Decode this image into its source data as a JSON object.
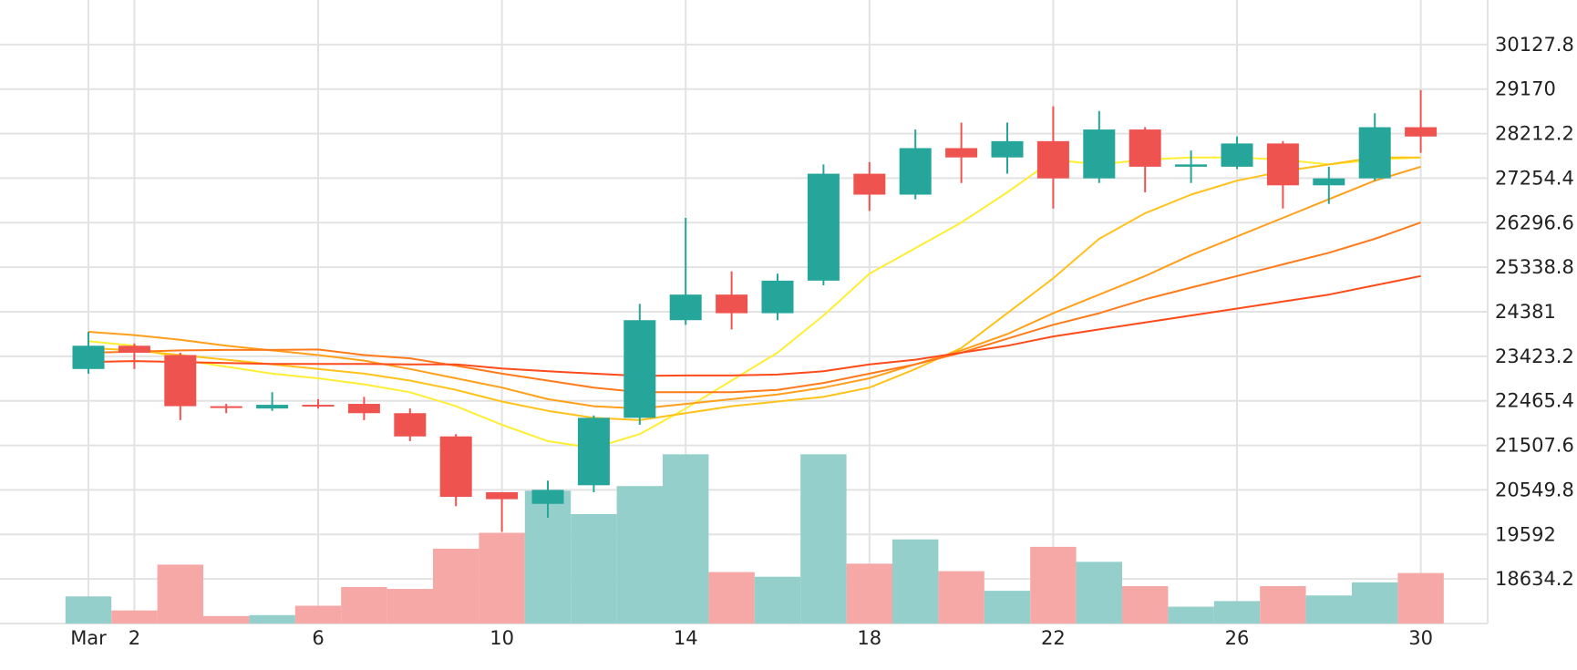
{
  "chart_data": {
    "type": "candlestick",
    "x_axis": {
      "tick_labels": [
        "Mar",
        "2",
        "6",
        "10",
        "14",
        "18",
        "22",
        "26",
        "30"
      ],
      "tick_days": [
        1,
        2,
        6,
        10,
        14,
        18,
        22,
        26,
        30
      ]
    },
    "y_axis": {
      "position": "right",
      "tick_labels": [
        "30127.8",
        "29170",
        "28212.2",
        "27254.4",
        "26296.6",
        "25338.8",
        "24381",
        "23423.2",
        "22465.4",
        "21507.6",
        "20549.8",
        "19592",
        "18634.2"
      ],
      "ylim": [
        17676.4,
        31085.6
      ]
    },
    "grid": true,
    "colors": {
      "up": "#26a69a",
      "down": "#ef5350",
      "up_volume": "#94cfcc",
      "down_volume": "#f5a8a6",
      "grid": "#e3e3e3"
    },
    "candles": [
      {
        "day": 1,
        "open": 23150,
        "high": 23950,
        "low": 23050,
        "close": 23650
      },
      {
        "day": 2,
        "open": 23650,
        "high": 23700,
        "low": 23150,
        "close": 23500
      },
      {
        "day": 3,
        "open": 23450,
        "high": 23500,
        "low": 22050,
        "close": 22350
      },
      {
        "day": 4,
        "open": 22350,
        "high": 22400,
        "low": 22200,
        "close": 22320
      },
      {
        "day": 5,
        "open": 22300,
        "high": 22650,
        "low": 22250,
        "close": 22380
      },
      {
        "day": 6,
        "open": 22380,
        "high": 22500,
        "low": 22300,
        "close": 22360
      },
      {
        "day": 7,
        "open": 22400,
        "high": 22550,
        "low": 22050,
        "close": 22200
      },
      {
        "day": 8,
        "open": 22200,
        "high": 22300,
        "low": 21600,
        "close": 21700
      },
      {
        "day": 9,
        "open": 21700,
        "high": 21750,
        "low": 20200,
        "close": 20400
      },
      {
        "day": 10,
        "open": 20500,
        "high": 20500,
        "low": 19650,
        "close": 20350
      },
      {
        "day": 11,
        "open": 20250,
        "high": 20750,
        "low": 19950,
        "close": 20550
      },
      {
        "day": 12,
        "open": 20650,
        "high": 22150,
        "low": 20500,
        "close": 22100
      },
      {
        "day": 13,
        "open": 22100,
        "high": 24550,
        "low": 21950,
        "close": 24200
      },
      {
        "day": 14,
        "open": 24200,
        "high": 26400,
        "low": 24100,
        "close": 24750
      },
      {
        "day": 15,
        "open": 24750,
        "high": 25250,
        "low": 24000,
        "close": 24350
      },
      {
        "day": 16,
        "open": 24350,
        "high": 25200,
        "low": 24200,
        "close": 25050
      },
      {
        "day": 17,
        "open": 25050,
        "high": 27550,
        "low": 24950,
        "close": 27350
      },
      {
        "day": 18,
        "open": 27350,
        "high": 27600,
        "low": 26550,
        "close": 26900
      },
      {
        "day": 19,
        "open": 26900,
        "high": 28300,
        "low": 26800,
        "close": 27900
      },
      {
        "day": 20,
        "open": 27900,
        "high": 28450,
        "low": 27150,
        "close": 27700
      },
      {
        "day": 21,
        "open": 27700,
        "high": 28450,
        "low": 27350,
        "close": 28050
      },
      {
        "day": 22,
        "open": 28050,
        "high": 28800,
        "low": 26600,
        "close": 27250
      },
      {
        "day": 23,
        "open": 27250,
        "high": 28700,
        "low": 27150,
        "close": 28300
      },
      {
        "day": 24,
        "open": 28300,
        "high": 28350,
        "low": 26950,
        "close": 27500
      },
      {
        "day": 25,
        "open": 27500,
        "high": 27850,
        "low": 27150,
        "close": 27550
      },
      {
        "day": 26,
        "open": 27500,
        "high": 28150,
        "low": 27450,
        "close": 28000
      },
      {
        "day": 27,
        "open": 28000,
        "high": 28050,
        "low": 26600,
        "close": 27100
      },
      {
        "day": 28,
        "open": 27100,
        "high": 27500,
        "low": 26700,
        "close": 27250
      },
      {
        "day": 29,
        "open": 27250,
        "high": 28650,
        "low": 27200,
        "close": 28350
      },
      {
        "day": 30,
        "open": 28350,
        "high": 29150,
        "low": 27800,
        "close": 28150
      }
    ],
    "volume": [
      {
        "day": 1,
        "value": 29,
        "up": true
      },
      {
        "day": 2,
        "value": 14,
        "up": false
      },
      {
        "day": 3,
        "value": 63,
        "up": false
      },
      {
        "day": 4,
        "value": 8,
        "up": false
      },
      {
        "day": 5,
        "value": 9,
        "up": true
      },
      {
        "day": 6,
        "value": 19,
        "up": false
      },
      {
        "day": 7,
        "value": 39,
        "up": false
      },
      {
        "day": 8,
        "value": 37,
        "up": false
      },
      {
        "day": 9,
        "value": 80,
        "up": false
      },
      {
        "day": 10,
        "value": 97,
        "up": false
      },
      {
        "day": 11,
        "value": 142,
        "up": true
      },
      {
        "day": 12,
        "value": 117,
        "up": true
      },
      {
        "day": 13,
        "value": 147,
        "up": true
      },
      {
        "day": 14,
        "value": 181,
        "up": true
      },
      {
        "day": 15,
        "value": 55,
        "up": false
      },
      {
        "day": 16,
        "value": 50,
        "up": true
      },
      {
        "day": 17,
        "value": 181,
        "up": true
      },
      {
        "day": 18,
        "value": 64,
        "up": false
      },
      {
        "day": 19,
        "value": 90,
        "up": true
      },
      {
        "day": 20,
        "value": 56,
        "up": false
      },
      {
        "day": 21,
        "value": 35,
        "up": true
      },
      {
        "day": 22,
        "value": 82,
        "up": false
      },
      {
        "day": 23,
        "value": 66,
        "up": true
      },
      {
        "day": 24,
        "value": 40,
        "up": false
      },
      {
        "day": 25,
        "value": 18,
        "up": true
      },
      {
        "day": 26,
        "value": 24,
        "up": true
      },
      {
        "day": 27,
        "value": 40,
        "up": false
      },
      {
        "day": 28,
        "value": 30,
        "up": true
      },
      {
        "day": 29,
        "value": 44,
        "up": true
      },
      {
        "day": 30,
        "value": 54,
        "up": false
      }
    ],
    "moving_averages": [
      {
        "color": "#ffee33",
        "values": [
          23750,
          23650,
          23350,
          23200,
          23050,
          22950,
          22820,
          22650,
          22350,
          21950,
          21600,
          21450,
          21750,
          22300,
          22900,
          23500,
          24300,
          25200,
          25750,
          26300,
          26950,
          27650,
          27550,
          27650,
          27700,
          27700,
          27650,
          27550,
          27650,
          27700
        ]
      },
      {
        "color": "#ffc21a",
        "values": [
          23600,
          23550,
          23450,
          23350,
          23250,
          23150,
          23050,
          22900,
          22700,
          22450,
          22250,
          22100,
          22050,
          22200,
          22350,
          22450,
          22550,
          22750,
          23150,
          23600,
          24350,
          25100,
          25950,
          26500,
          26900,
          27200,
          27400,
          27550,
          27700,
          27700
        ]
      },
      {
        "color": "#ff9f1a",
        "values": [
          23950,
          23880,
          23780,
          23650,
          23550,
          23450,
          23330,
          23150,
          22950,
          22750,
          22500,
          22350,
          22300,
          22400,
          22500,
          22600,
          22750,
          22950,
          23250,
          23550,
          23900,
          24350,
          24750,
          25150,
          25600,
          26000,
          26400,
          26800,
          27200,
          27500
        ]
      },
      {
        "color": "#ff7a1a",
        "values": [
          23500,
          23520,
          23550,
          23560,
          23560,
          23570,
          23450,
          23380,
          23220,
          23050,
          22900,
          22750,
          22650,
          22650,
          22650,
          22700,
          22850,
          23050,
          23250,
          23500,
          23800,
          24100,
          24350,
          24650,
          24900,
          25150,
          25400,
          25650,
          25950,
          26300
        ]
      },
      {
        "color": "#ff4a1a",
        "values": [
          23300,
          23320,
          23300,
          23280,
          23260,
          23260,
          23260,
          23250,
          23250,
          23160,
          23100,
          23050,
          23000,
          23010,
          23010,
          23030,
          23100,
          23250,
          23350,
          23500,
          23650,
          23850,
          24000,
          24150,
          24300,
          24450,
          24600,
          24750,
          24950,
          25150
        ]
      }
    ]
  }
}
